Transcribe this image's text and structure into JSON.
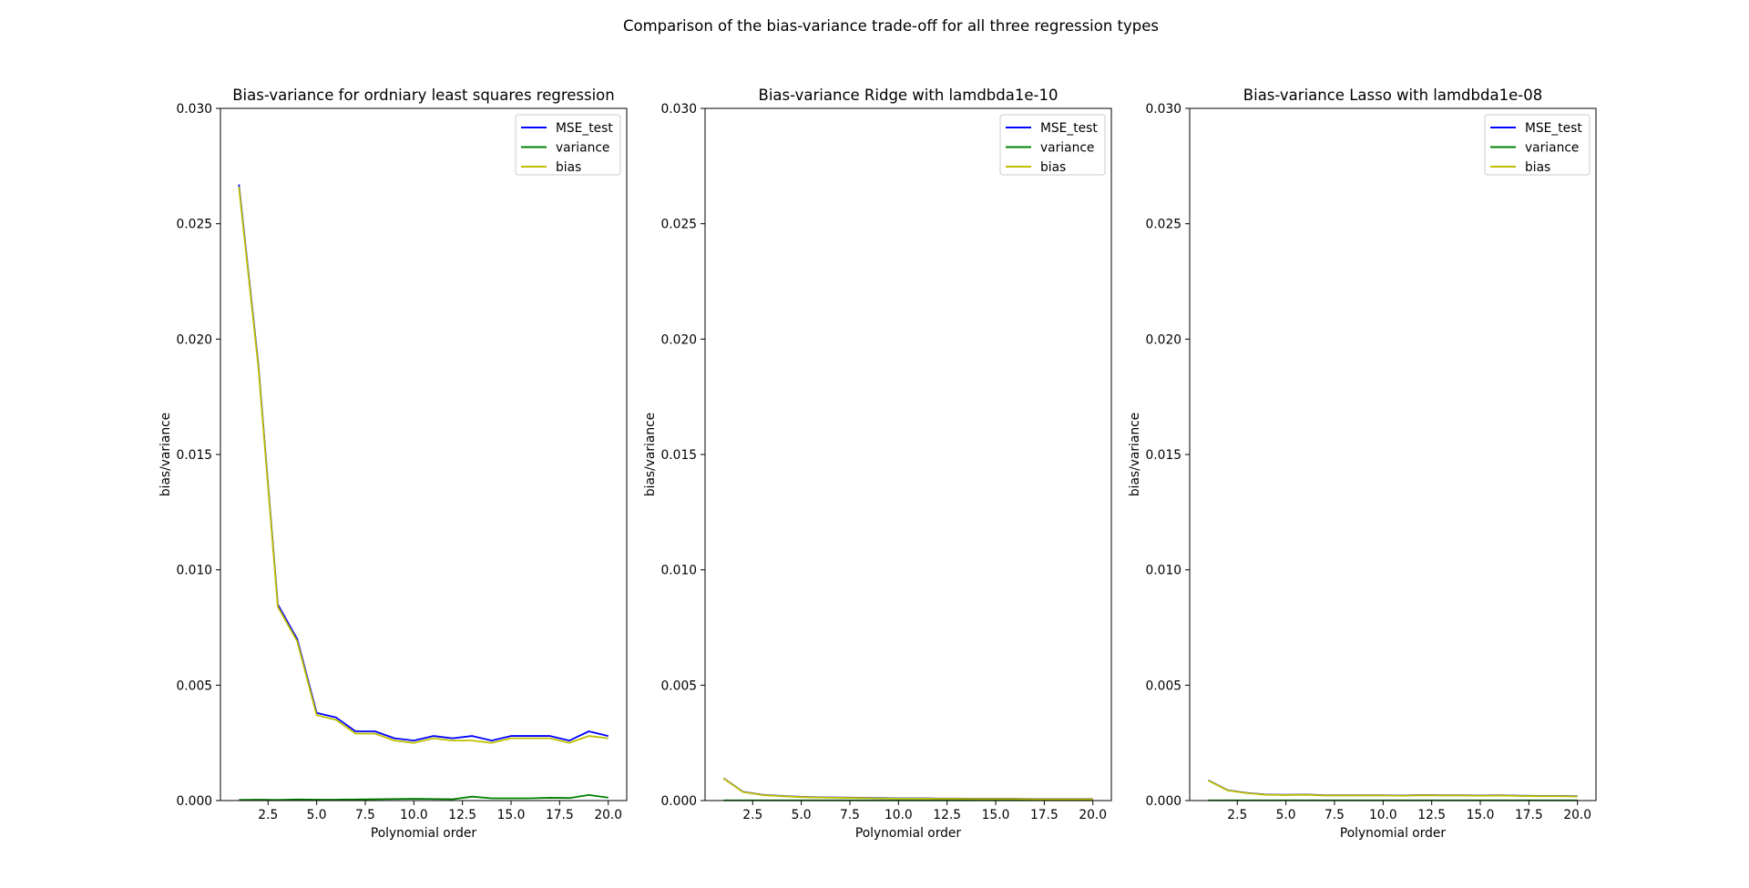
{
  "figure_title": "Comparison of the bias-variance trade-off for all three regression types",
  "chart_data": [
    {
      "type": "line",
      "title": "Bias-variance for ordniary least squares regression",
      "xlabel": "Polynomial order",
      "ylabel": "bias/variance",
      "xlim": [
        0.05,
        20.95
      ],
      "ylim": [
        0,
        0.03
      ],
      "xticks": [
        2.5,
        5.0,
        7.5,
        10.0,
        12.5,
        15.0,
        17.5,
        20.0
      ],
      "xtick_labels": [
        "2.5",
        "5.0",
        "7.5",
        "10.0",
        "12.5",
        "15.0",
        "17.5",
        "20.0"
      ],
      "yticks": [
        0,
        0.005,
        0.01,
        0.015,
        0.02,
        0.025,
        0.03
      ],
      "ytick_labels": [
        "0.000",
        "0.005",
        "0.010",
        "0.015",
        "0.020",
        "0.025",
        "0.030"
      ],
      "legend_position": "top-right",
      "grid": false,
      "x": [
        1,
        2,
        3,
        4,
        5,
        6,
        7,
        8,
        9,
        10,
        11,
        12,
        13,
        14,
        15,
        16,
        17,
        18,
        19,
        20
      ],
      "series": [
        {
          "name": "MSE_test",
          "color": "#0000ff",
          "values": [
            0.0267,
            0.0189,
            0.0085,
            0.007,
            0.0038,
            0.0036,
            0.003,
            0.003,
            0.0027,
            0.0026,
            0.0028,
            0.0027,
            0.0028,
            0.0026,
            0.0028,
            0.0028,
            0.0028,
            0.0026,
            0.003,
            0.0028
          ]
        },
        {
          "name": "variance",
          "color": "#008000",
          "values": [
            3e-05,
            4e-05,
            3e-05,
            5e-05,
            4e-05,
            4e-05,
            5e-05,
            6e-05,
            7e-05,
            8e-05,
            7e-05,
            6e-05,
            0.00017,
            0.0001,
            0.0001,
            0.0001,
            0.00012,
            0.00011,
            0.00024,
            0.00013
          ]
        },
        {
          "name": "bias",
          "color": "#bfbf00",
          "values": [
            0.0266,
            0.0188,
            0.0084,
            0.0069,
            0.0037,
            0.0035,
            0.0029,
            0.0029,
            0.0026,
            0.0025,
            0.0027,
            0.0026,
            0.0026,
            0.0025,
            0.0027,
            0.0027,
            0.0027,
            0.0025,
            0.0028,
            0.0027
          ]
        }
      ]
    },
    {
      "type": "line",
      "title": "Bias-variance Ridge with lamdbda1e-10",
      "xlabel": "Polynomial order",
      "ylabel": "bias/variance",
      "xlim": [
        0.05,
        20.95
      ],
      "ylim": [
        0,
        0.03
      ],
      "xticks": [
        2.5,
        5.0,
        7.5,
        10.0,
        12.5,
        15.0,
        17.5,
        20.0
      ],
      "xtick_labels": [
        "2.5",
        "5.0",
        "7.5",
        "10.0",
        "12.5",
        "15.0",
        "17.5",
        "20.0"
      ],
      "yticks": [
        0,
        0.005,
        0.01,
        0.015,
        0.02,
        0.025,
        0.03
      ],
      "ytick_labels": [
        "0.000",
        "0.005",
        "0.010",
        "0.015",
        "0.020",
        "0.025",
        "0.030"
      ],
      "legend_position": "top-right",
      "grid": false,
      "x": [
        1,
        2,
        3,
        4,
        5,
        6,
        7,
        8,
        9,
        10,
        11,
        12,
        13,
        14,
        15,
        16,
        17,
        18,
        19,
        20
      ],
      "series": [
        {
          "name": "MSE_test",
          "color": "#0000ff",
          "values": [
            0.00097,
            0.00038,
            0.00025,
            0.0002,
            0.00016,
            0.00014,
            0.00013,
            0.00012,
            0.00011,
            0.0001,
            0.0001,
            9e-05,
            9e-05,
            8e-05,
            8e-05,
            8e-05,
            7e-05,
            7e-05,
            7e-05,
            7e-05
          ]
        },
        {
          "name": "variance",
          "color": "#008000",
          "values": [
            1e-05,
            1e-05,
            1e-05,
            1e-05,
            1e-05,
            1e-05,
            1e-05,
            1e-05,
            1e-05,
            1e-05,
            1e-05,
            1e-05,
            1e-05,
            1e-05,
            1e-05,
            1e-05,
            1e-05,
            1e-05,
            1e-05,
            1e-05
          ]
        },
        {
          "name": "bias",
          "color": "#bfbf00",
          "values": [
            0.00096,
            0.00037,
            0.00024,
            0.00019,
            0.00015,
            0.00013,
            0.00012,
            0.00011,
            0.0001,
            9e-05,
            9e-05,
            8e-05,
            8e-05,
            7e-05,
            7e-05,
            7e-05,
            6e-05,
            6e-05,
            6e-05,
            6e-05
          ]
        }
      ]
    },
    {
      "type": "line",
      "title": "Bias-variance Lasso with lamdbda1e-08",
      "xlabel": "Polynomial order",
      "ylabel": "bias/variance",
      "xlim": [
        0.05,
        20.95
      ],
      "ylim": [
        0,
        0.03
      ],
      "xticks": [
        2.5,
        5.0,
        7.5,
        10.0,
        12.5,
        15.0,
        17.5,
        20.0
      ],
      "xtick_labels": [
        "2.5",
        "5.0",
        "7.5",
        "10.0",
        "12.5",
        "15.0",
        "17.5",
        "20.0"
      ],
      "yticks": [
        0,
        0.005,
        0.01,
        0.015,
        0.02,
        0.025,
        0.03
      ],
      "ytick_labels": [
        "0.000",
        "0.005",
        "0.010",
        "0.015",
        "0.020",
        "0.025",
        "0.030"
      ],
      "legend_position": "top-right",
      "grid": false,
      "x": [
        1,
        2,
        3,
        4,
        5,
        6,
        7,
        8,
        9,
        10,
        11,
        12,
        13,
        14,
        15,
        16,
        17,
        18,
        19,
        20
      ],
      "series": [
        {
          "name": "MSE_test",
          "color": "#0000ff",
          "values": [
            0.00088,
            0.00045,
            0.00033,
            0.00026,
            0.00025,
            0.00026,
            0.00023,
            0.00023,
            0.00023,
            0.00023,
            0.00022,
            0.00024,
            0.00023,
            0.00023,
            0.00022,
            0.00023,
            0.00021,
            0.0002,
            0.0002,
            0.00019
          ]
        },
        {
          "name": "variance",
          "color": "#008000",
          "values": [
            1e-05,
            1e-05,
            1e-05,
            1e-05,
            1e-05,
            1e-05,
            1e-05,
            1e-05,
            1e-05,
            1e-05,
            1e-05,
            1e-05,
            1e-05,
            1e-05,
            1e-05,
            1e-05,
            1e-05,
            1e-05,
            1e-05,
            1e-05
          ]
        },
        {
          "name": "bias",
          "color": "#bfbf00",
          "values": [
            0.00087,
            0.00044,
            0.00032,
            0.00025,
            0.00024,
            0.00025,
            0.00022,
            0.00022,
            0.00022,
            0.00022,
            0.00021,
            0.00023,
            0.00022,
            0.00022,
            0.00021,
            0.00022,
            0.0002,
            0.00019,
            0.00019,
            0.00018
          ]
        }
      ]
    }
  ]
}
